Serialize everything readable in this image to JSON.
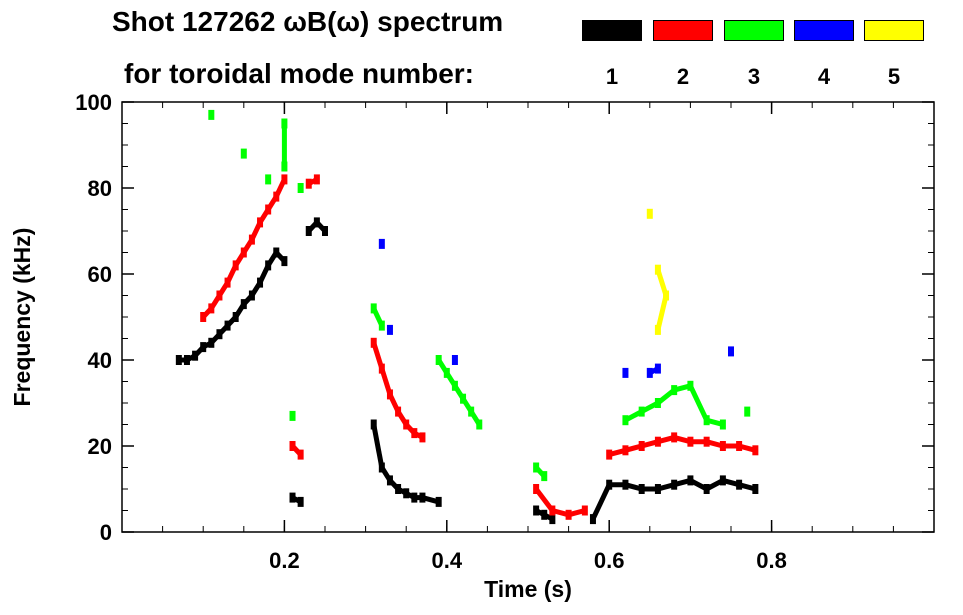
{
  "header": {
    "title_line1": "Shot 127262 ωB(ω) spectrum",
    "title_line2": "for toroidal mode number:"
  },
  "legend": [
    {
      "label": "1",
      "color": "#000000"
    },
    {
      "label": "2",
      "color": "#ff0000"
    },
    {
      "label": "3",
      "color": "#00ff00"
    },
    {
      "label": "4",
      "color": "#0000ff"
    },
    {
      "label": "5",
      "color": "#ffff00"
    }
  ],
  "chart_data": {
    "type": "scatter",
    "title": "Shot 127262 ωB(ω) spectrum for toroidal mode number:",
    "xlabel": "Time (s)",
    "ylabel": "Frequency (kHz)",
    "xlim": [
      0.0,
      1.0
    ],
    "ylim": [
      0,
      100
    ],
    "xticks": [
      0.2,
      0.4,
      0.6,
      0.8
    ],
    "xtick_labels": [
      "0.2",
      "0.4",
      "0.6",
      "0.8"
    ],
    "yticks": [
      0,
      20,
      40,
      60,
      80,
      100
    ],
    "ytick_labels": [
      "0",
      "20",
      "40",
      "60",
      "80",
      "100"
    ],
    "grid": false,
    "legend_position": "top-right",
    "series": [
      {
        "name": "n=1",
        "mode": 1,
        "color": "#000000",
        "points": [
          [
            0.07,
            40
          ],
          [
            0.08,
            40
          ],
          [
            0.09,
            41
          ],
          [
            0.1,
            43
          ],
          [
            0.11,
            44
          ],
          [
            0.12,
            46
          ],
          [
            0.13,
            48
          ],
          [
            0.14,
            50
          ],
          [
            0.15,
            53
          ],
          [
            0.16,
            55
          ],
          [
            0.17,
            58
          ],
          [
            0.18,
            62
          ],
          [
            0.19,
            65
          ],
          [
            0.2,
            63
          ],
          [
            0.21,
            8
          ],
          [
            0.22,
            7
          ],
          [
            0.23,
            70
          ],
          [
            0.24,
            72
          ],
          [
            0.25,
            70
          ],
          [
            0.31,
            25
          ],
          [
            0.32,
            15
          ],
          [
            0.33,
            12
          ],
          [
            0.34,
            10
          ],
          [
            0.35,
            9
          ],
          [
            0.36,
            8
          ],
          [
            0.37,
            8
          ],
          [
            0.39,
            7
          ],
          [
            0.51,
            5
          ],
          [
            0.52,
            4
          ],
          [
            0.53,
            3
          ],
          [
            0.58,
            3
          ],
          [
            0.6,
            11
          ],
          [
            0.62,
            11
          ],
          [
            0.64,
            10
          ],
          [
            0.66,
            10
          ],
          [
            0.68,
            11
          ],
          [
            0.7,
            12
          ],
          [
            0.72,
            10
          ],
          [
            0.74,
            12
          ],
          [
            0.76,
            11
          ],
          [
            0.78,
            10
          ]
        ]
      },
      {
        "name": "n=2",
        "mode": 2,
        "color": "#ff0000",
        "points": [
          [
            0.1,
            50
          ],
          [
            0.11,
            52
          ],
          [
            0.12,
            55
          ],
          [
            0.13,
            58
          ],
          [
            0.14,
            62
          ],
          [
            0.15,
            65
          ],
          [
            0.16,
            68
          ],
          [
            0.17,
            72
          ],
          [
            0.18,
            75
          ],
          [
            0.19,
            78
          ],
          [
            0.2,
            82
          ],
          [
            0.21,
            20
          ],
          [
            0.22,
            18
          ],
          [
            0.23,
            81
          ],
          [
            0.24,
            82
          ],
          [
            0.31,
            44
          ],
          [
            0.32,
            38
          ],
          [
            0.33,
            32
          ],
          [
            0.34,
            28
          ],
          [
            0.35,
            25
          ],
          [
            0.36,
            23
          ],
          [
            0.37,
            22
          ],
          [
            0.51,
            10
          ],
          [
            0.53,
            5
          ],
          [
            0.55,
            4
          ],
          [
            0.57,
            5
          ],
          [
            0.6,
            18
          ],
          [
            0.62,
            19
          ],
          [
            0.64,
            20
          ],
          [
            0.66,
            21
          ],
          [
            0.68,
            22
          ],
          [
            0.7,
            21
          ],
          [
            0.72,
            21
          ],
          [
            0.74,
            20
          ],
          [
            0.76,
            20
          ],
          [
            0.78,
            19
          ]
        ]
      },
      {
        "name": "n=3",
        "mode": 3,
        "color": "#00ff00",
        "points": [
          [
            0.11,
            97
          ],
          [
            0.15,
            88
          ],
          [
            0.18,
            82
          ],
          [
            0.2,
            95
          ],
          [
            0.2,
            85
          ],
          [
            0.21,
            27
          ],
          [
            0.22,
            80
          ],
          [
            0.31,
            52
          ],
          [
            0.32,
            48
          ],
          [
            0.39,
            40
          ],
          [
            0.4,
            37
          ],
          [
            0.41,
            34
          ],
          [
            0.42,
            31
          ],
          [
            0.43,
            28
          ],
          [
            0.44,
            25
          ],
          [
            0.51,
            15
          ],
          [
            0.52,
            13
          ],
          [
            0.62,
            26
          ],
          [
            0.64,
            28
          ],
          [
            0.66,
            30
          ],
          [
            0.68,
            33
          ],
          [
            0.7,
            34
          ],
          [
            0.72,
            26
          ],
          [
            0.74,
            25
          ],
          [
            0.77,
            28
          ]
        ]
      },
      {
        "name": "n=4",
        "mode": 4,
        "color": "#0000ff",
        "points": [
          [
            0.32,
            67
          ],
          [
            0.33,
            47
          ],
          [
            0.41,
            40
          ],
          [
            0.62,
            37
          ],
          [
            0.65,
            37
          ],
          [
            0.66,
            38
          ],
          [
            0.75,
            42
          ]
        ]
      },
      {
        "name": "n=5",
        "mode": 5,
        "color": "#ffff00",
        "points": [
          [
            0.65,
            74
          ],
          [
            0.66,
            61
          ],
          [
            0.67,
            55
          ],
          [
            0.66,
            47
          ]
        ]
      }
    ]
  }
}
